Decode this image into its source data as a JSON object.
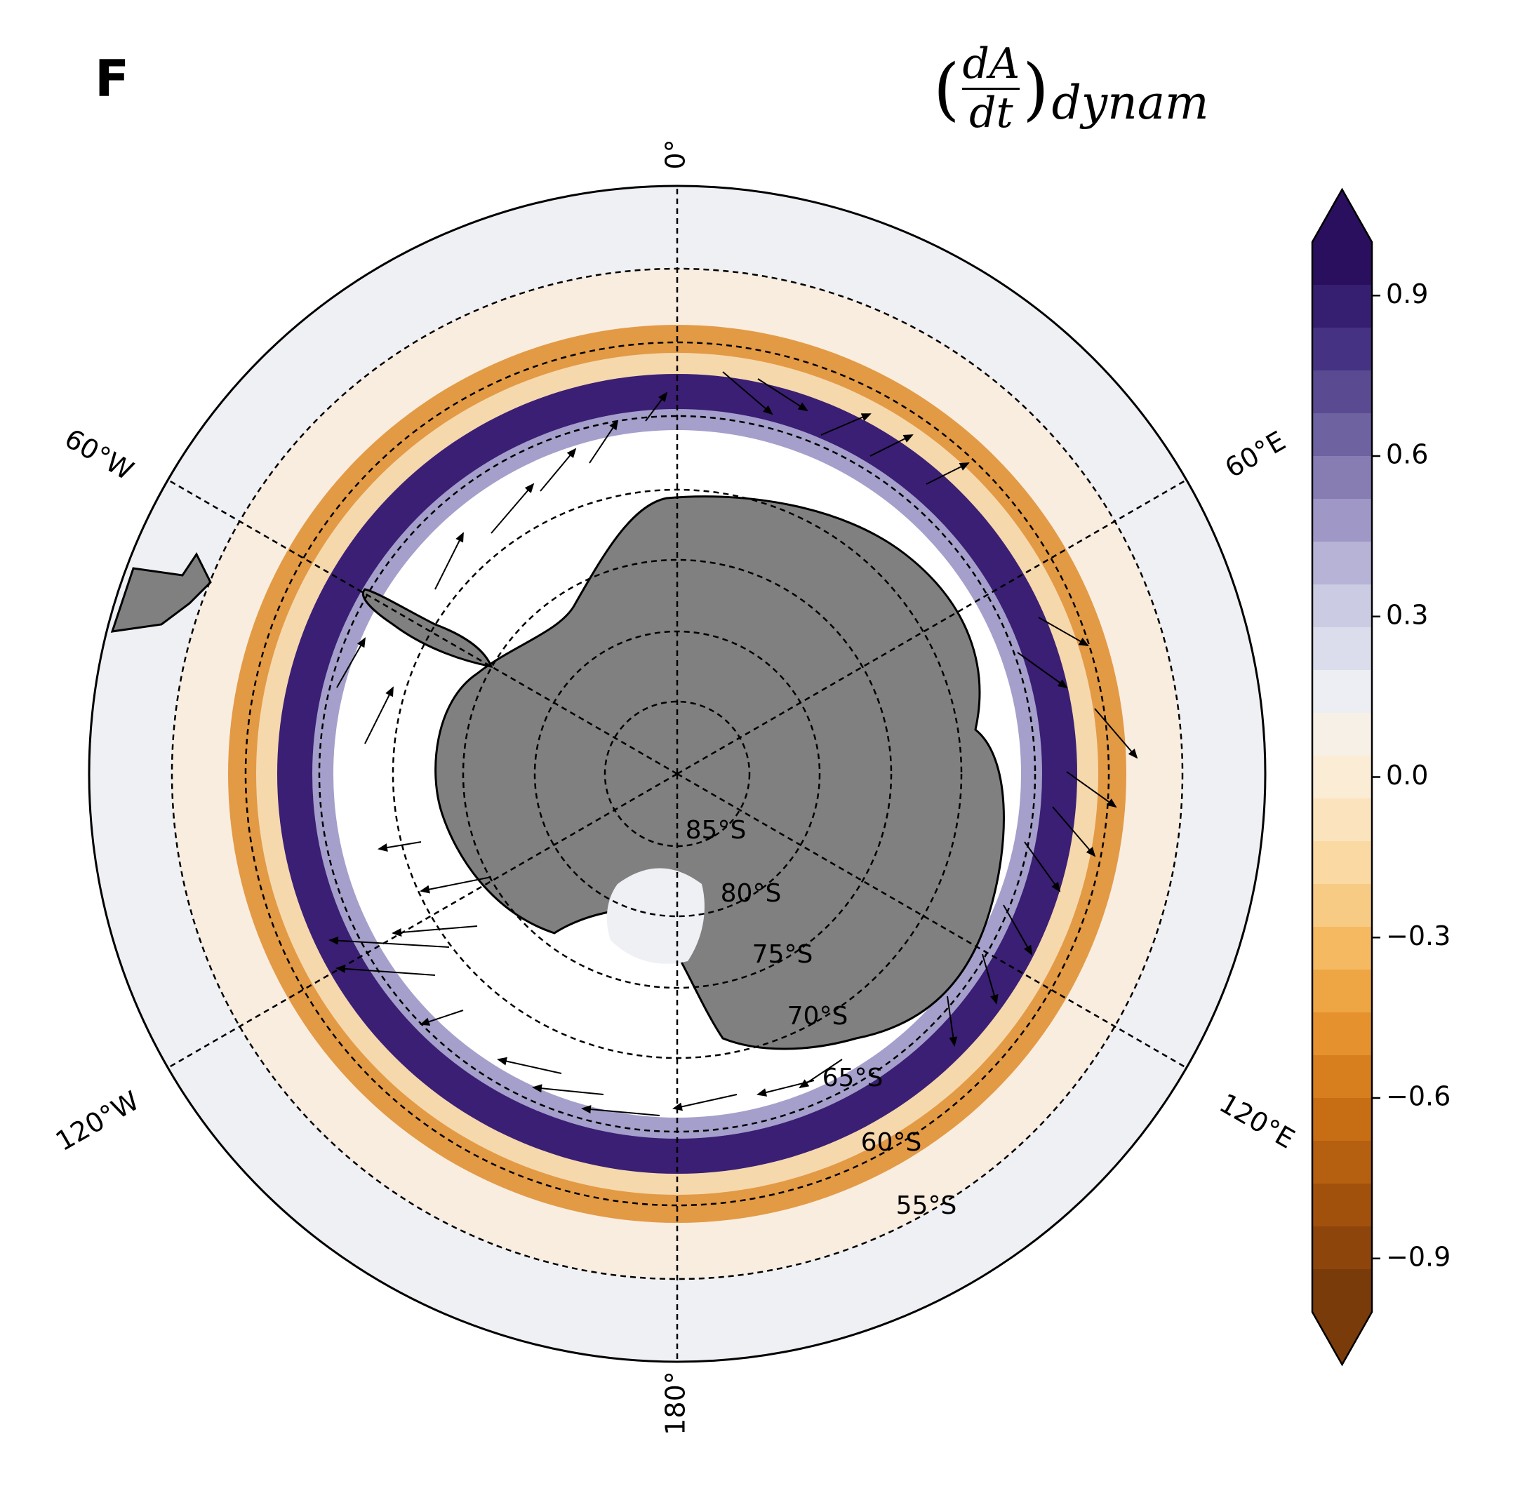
{
  "panel_label": "F",
  "title": {
    "open": "(",
    "numerator": "dA",
    "denominator": "dt",
    "close": ")",
    "subscript": "dynam"
  },
  "map": {
    "projection": "south-polar-stereographic",
    "lon_labels": [
      "0°",
      "60°E",
      "120°E",
      "180°",
      "120°W",
      "60°W"
    ],
    "lat_labels": [
      "85°S",
      "80°S",
      "75°S",
      "70°S",
      "65°S",
      "60°S",
      "55°S"
    ],
    "land_color": "#808080",
    "ocean_background": "#eef0f4",
    "no_ice_color": "#ffffff"
  },
  "colorbar": {
    "cmap": "PuOr",
    "ticks": [
      "0.9",
      "0.6",
      "0.3",
      "0.0",
      "−0.3",
      "−0.6",
      "−0.9"
    ],
    "range": [
      -1.0,
      1.0
    ],
    "extend": "both",
    "colors": [
      "#7a3b0a",
      "#8e450b",
      "#a2510d",
      "#b55f10",
      "#c76e14",
      "#d77f1e",
      "#e5922e",
      "#ee a544",
      "#f4b961",
      "#f8cb85",
      "#fad9a3",
      "#fbe3bd",
      "#fbecd6",
      "#f7f0e6",
      "#eceef3",
      "#dcddec",
      "#cbcbe3",
      "#b6b3d6",
      "#9f98c6",
      "#877db3",
      "#6f62a0",
      "#5a4a91",
      "#463282",
      "#361f70",
      "#2a0f5e"
    ]
  }
}
